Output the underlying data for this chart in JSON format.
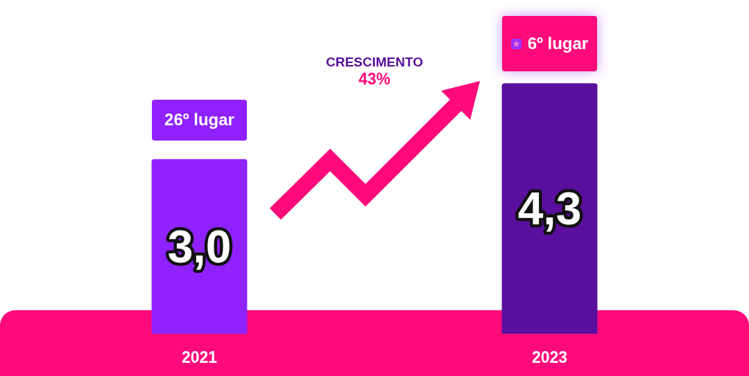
{
  "chart_data": {
    "type": "bar",
    "categories": [
      "2021",
      "2023"
    ],
    "values": [
      3.0,
      4.3
    ],
    "colors": [
      "#8f22ff",
      "#5a0f9e"
    ],
    "value_labels": [
      "3,0",
      "4,3"
    ],
    "tick_labels": "x",
    "annotations": [
      "CRESCIMENTO",
      "43%",
      {
        "text": "26º lugar",
        "x": "2021",
        "y": 3.0
      },
      {
        "text": "6º lugar",
        "x": "2023",
        "y": 4.3
      }
    ]
  }
}
